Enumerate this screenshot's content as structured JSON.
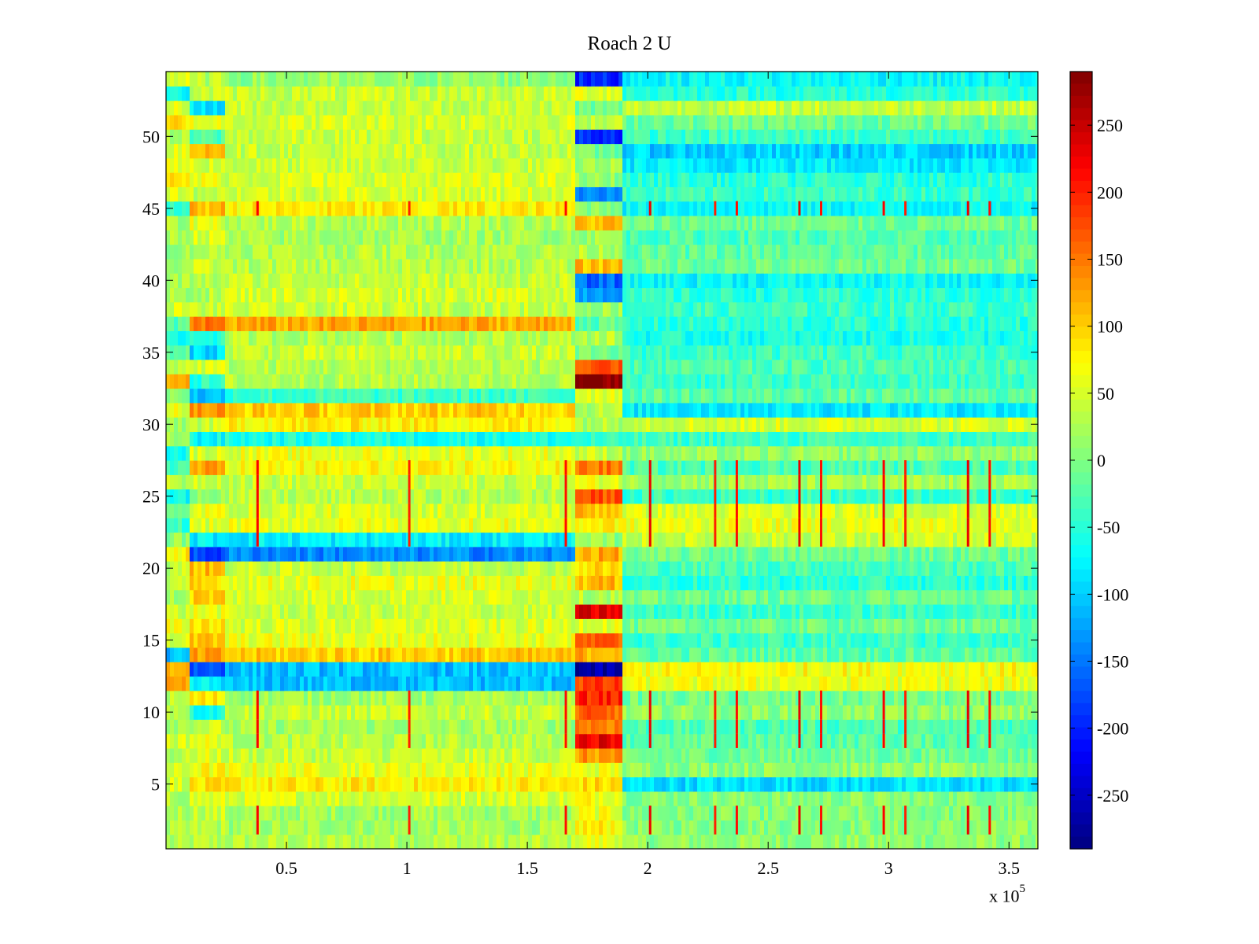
{
  "chart_data": {
    "type": "heatmap",
    "title": "Roach 2 U",
    "xlabel": "",
    "ylabel": "",
    "x_scale_label": {
      "prefix": "x 10",
      "exponent": "5"
    },
    "x_range": [
      1,
      362000
    ],
    "y_range": [
      0.5,
      54.5
    ],
    "rows": 54,
    "color_range": [
      -290,
      290
    ],
    "colormap": "jet",
    "grid": false,
    "x_ticks": [
      {
        "value": 50000,
        "label": "0.5"
      },
      {
        "value": 100000,
        "label": "1"
      },
      {
        "value": 150000,
        "label": "1.5"
      },
      {
        "value": 200000,
        "label": "2"
      },
      {
        "value": 250000,
        "label": "2.5"
      },
      {
        "value": 300000,
        "label": "3"
      },
      {
        "value": 350000,
        "label": "3.5"
      }
    ],
    "y_ticks": [
      {
        "value": 5,
        "label": "5"
      },
      {
        "value": 10,
        "label": "10"
      },
      {
        "value": 15,
        "label": "15"
      },
      {
        "value": 20,
        "label": "20"
      },
      {
        "value": 25,
        "label": "25"
      },
      {
        "value": 30,
        "label": "30"
      },
      {
        "value": 35,
        "label": "35"
      },
      {
        "value": 40,
        "label": "40"
      },
      {
        "value": 45,
        "label": "45"
      },
      {
        "value": 50,
        "label": "50"
      }
    ],
    "colorbar_ticks": [
      {
        "value": 250,
        "label": "250"
      },
      {
        "value": 200,
        "label": "200"
      },
      {
        "value": 150,
        "label": "150"
      },
      {
        "value": 100,
        "label": "100"
      },
      {
        "value": 50,
        "label": "50"
      },
      {
        "value": 0,
        "label": "0"
      },
      {
        "value": -50,
        "label": "-50"
      },
      {
        "value": -100,
        "label": "-100"
      },
      {
        "value": -150,
        "label": "-150"
      },
      {
        "value": -200,
        "label": "-200"
      },
      {
        "value": -250,
        "label": "-250"
      }
    ],
    "segment_edges": [
      1,
      10000,
      25000,
      170000,
      190000,
      362000
    ],
    "row_levels": [
      [
        20,
        30,
        30,
        60,
        10
      ],
      [
        20,
        30,
        20,
        80,
        5
      ],
      [
        30,
        40,
        20,
        60,
        0
      ],
      [
        30,
        50,
        50,
        70,
        5
      ],
      [
        50,
        80,
        80,
        90,
        -90
      ],
      [
        40,
        70,
        60,
        60,
        10
      ],
      [
        30,
        50,
        40,
        130,
        -10
      ],
      [
        50,
        60,
        30,
        230,
        -20
      ],
      [
        30,
        40,
        20,
        150,
        -30
      ],
      [
        40,
        -60,
        40,
        160,
        10
      ],
      [
        30,
        80,
        20,
        200,
        -10
      ],
      [
        110,
        -80,
        -110,
        180,
        60
      ],
      [
        120,
        -170,
        -110,
        -270,
        70
      ],
      [
        -110,
        120,
        100,
        120,
        -20
      ],
      [
        50,
        100,
        60,
        160,
        -40
      ],
      [
        60,
        90,
        50,
        60,
        -10
      ],
      [
        40,
        60,
        40,
        230,
        -40
      ],
      [
        20,
        100,
        50,
        30,
        -10
      ],
      [
        30,
        90,
        60,
        110,
        -50
      ],
      [
        40,
        110,
        40,
        90,
        -30
      ],
      [
        80,
        -180,
        -140,
        120,
        -10
      ],
      [
        10,
        -80,
        -80,
        10,
        40
      ],
      [
        -40,
        50,
        60,
        80,
        60
      ],
      [
        -20,
        60,
        50,
        110,
        50
      ],
      [
        -70,
        20,
        30,
        170,
        -40
      ],
      [
        30,
        50,
        40,
        60,
        20
      ],
      [
        -30,
        120,
        70,
        150,
        -30
      ],
      [
        -60,
        50,
        60,
        40,
        10
      ],
      [
        20,
        -70,
        -60,
        -50,
        -40
      ],
      [
        20,
        40,
        80,
        30,
        50
      ],
      [
        60,
        130,
        100,
        30,
        -80
      ],
      [
        10,
        -110,
        -40,
        60,
        -20
      ],
      [
        130,
        -50,
        30,
        290,
        -40
      ],
      [
        40,
        50,
        30,
        160,
        -30
      ],
      [
        -30,
        -90,
        40,
        -10,
        -40
      ],
      [
        -70,
        -50,
        30,
        30,
        -60
      ],
      [
        -30,
        150,
        120,
        -20,
        -50
      ],
      [
        50,
        40,
        40,
        20,
        -40
      ],
      [
        20,
        30,
        50,
        -120,
        -50
      ],
      [
        20,
        30,
        40,
        -160,
        -70
      ],
      [
        20,
        40,
        30,
        110,
        -10
      ],
      [
        20,
        30,
        30,
        30,
        -20
      ],
      [
        30,
        50,
        20,
        20,
        -30
      ],
      [
        20,
        60,
        30,
        110,
        -10
      ],
      [
        -40,
        110,
        80,
        10,
        -70
      ],
      [
        60,
        40,
        50,
        -130,
        -40
      ],
      [
        80,
        60,
        50,
        10,
        -50
      ],
      [
        60,
        50,
        40,
        20,
        -80
      ],
      [
        50,
        120,
        40,
        -10,
        -100
      ],
      [
        20,
        -30,
        40,
        -190,
        -40
      ],
      [
        90,
        60,
        50,
        30,
        -10
      ],
      [
        60,
        -90,
        40,
        -10,
        40
      ],
      [
        -70,
        40,
        40,
        60,
        -50
      ],
      [
        50,
        30,
        10,
        -200,
        -70
      ]
    ],
    "spike_columns": [
      {
        "x": 38000,
        "value": 220
      },
      {
        "x": 101000,
        "value": 200
      },
      {
        "x": 166000,
        "value": 210
      },
      {
        "x": 201000,
        "value": 230
      },
      {
        "x": 228000,
        "value": 200
      },
      {
        "x": 237000,
        "value": 210
      },
      {
        "x": 263000,
        "value": 230
      },
      {
        "x": 272000,
        "value": 210
      },
      {
        "x": 298000,
        "value": 220
      },
      {
        "x": 307000,
        "value": 200
      },
      {
        "x": 333000,
        "value": 230
      },
      {
        "x": 342000,
        "value": 210
      }
    ],
    "spike_rows": [
      2,
      3,
      8,
      9,
      10,
      11,
      22,
      23,
      24,
      25,
      26,
      27,
      45
    ]
  }
}
